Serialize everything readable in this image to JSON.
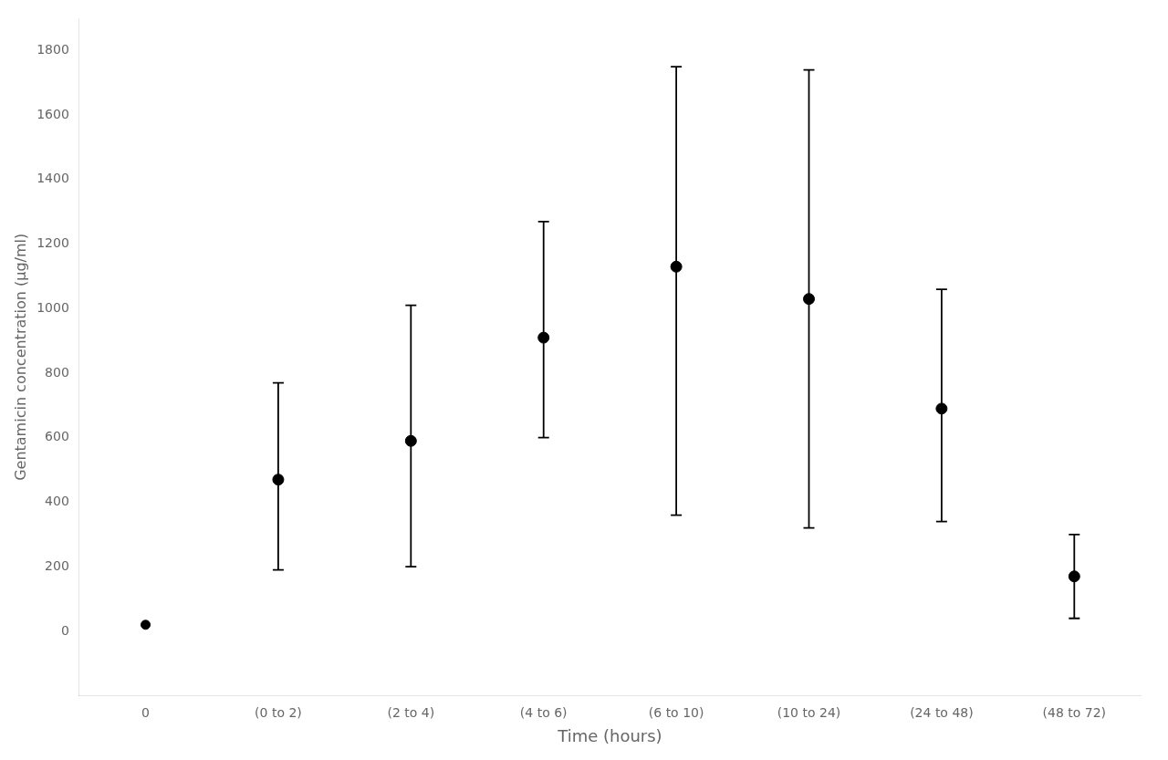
{
  "chart_data": {
    "type": "scatter",
    "xlabel": "Time (hours)",
    "ylabel": "Gentamicin concentration (µg/ml)",
    "categories": [
      "0",
      "(0 to 2)",
      "(2 to 4)",
      "(4 to 6)",
      "(6 to 10)",
      "(10 to 24)",
      "(24 to 48)",
      "(48 to 72)"
    ],
    "values": [
      20,
      470,
      590,
      910,
      1130,
      1030,
      690,
      170
    ],
    "errors_upper": [
      0,
      300,
      420,
      360,
      620,
      710,
      370,
      130
    ],
    "errors_lower": [
      0,
      280,
      390,
      310,
      770,
      710,
      350,
      130
    ],
    "color": "#000000",
    "marker": "circle",
    "ylim": [
      -200,
      1900
    ],
    "yticks": [
      0,
      200,
      400,
      600,
      800,
      1000,
      1200,
      1400,
      1600,
      1800
    ],
    "grid": false
  }
}
